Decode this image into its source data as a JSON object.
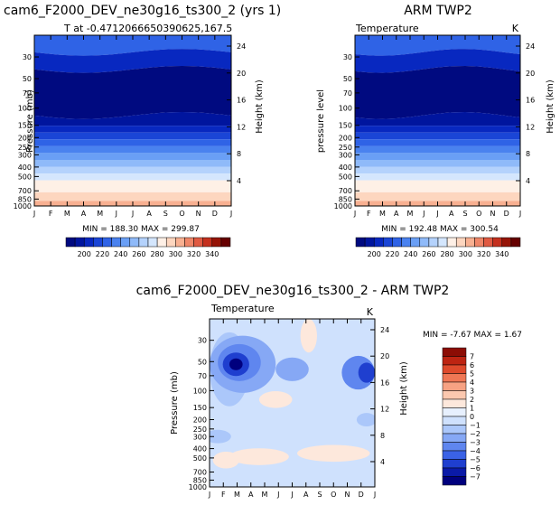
{
  "colors": {
    "temp_palette": [
      "#000a80",
      "#00159e",
      "#0828c0",
      "#1a45d6",
      "#2f63e6",
      "#4a82ef",
      "#6a9ff5",
      "#8fbaf9",
      "#b4d2fc",
      "#d4e6fd",
      "#fef0e6",
      "#fdd6bf",
      "#f8b091",
      "#ef8668",
      "#e05a42",
      "#c4301e",
      "#961407",
      "#660000"
    ],
    "diff_palette": [
      "#00007e",
      "#0a1aa8",
      "#1f3fcf",
      "#3a62e6",
      "#5f86ef",
      "#86a8f5",
      "#abc7fa",
      "#cfe1fd",
      "#e7f0fe",
      "#fde8dc",
      "#fbc8af",
      "#f7a283",
      "#ef7755",
      "#de4a2c",
      "#bd2412",
      "#8c0d05"
    ]
  },
  "chart_data": [
    {
      "type": "heatmap",
      "title": "cam6_F2000_DEV_ne30g16_ts300_2 (yrs 1)",
      "subtitle_left": "T at -0.4712066650390625,167.5",
      "subtitle_right": "",
      "ylabel": "Pressure (mb)",
      "ylabel_right": "Height (km)",
      "x_ticks": [
        "J",
        "F",
        "M",
        "A",
        "M",
        "J",
        "J",
        "A",
        "S",
        "O",
        "N",
        "D",
        "J"
      ],
      "y_ticks": [
        30,
        50,
        70,
        100,
        150,
        200,
        250,
        300,
        400,
        500,
        700,
        850,
        1000
      ],
      "y_right_ticks": [
        24,
        20,
        16,
        12,
        8,
        4
      ],
      "stats": "MIN = 188.30  MAX = 299.87",
      "min": 188.3,
      "max": 299.87,
      "levels": [
        200,
        220,
        240,
        260,
        280,
        300,
        320,
        340
      ],
      "colorbar_labels": [
        "200",
        "220",
        "240",
        "260",
        "280",
        "300",
        "320",
        "340"
      ]
    },
    {
      "type": "heatmap",
      "title": "ARM TWP2",
      "subtitle_left": "Temperature",
      "subtitle_right": "K",
      "ylabel": "pressure level",
      "ylabel_right": "Height (km)",
      "x_ticks": [
        "J",
        "F",
        "M",
        "A",
        "M",
        "J",
        "J",
        "A",
        "S",
        "O",
        "N",
        "D",
        "J"
      ],
      "y_ticks": [
        30,
        50,
        70,
        100,
        150,
        200,
        250,
        300,
        400,
        500,
        700,
        850,
        1000
      ],
      "y_right_ticks": [
        24,
        20,
        16,
        12,
        8,
        4
      ],
      "stats": "MIN = 192.48  MAX = 300.54",
      "min": 192.48,
      "max": 300.54,
      "levels": [
        200,
        220,
        240,
        260,
        280,
        300,
        320,
        340
      ],
      "colorbar_labels": [
        "200",
        "220",
        "240",
        "260",
        "280",
        "300",
        "320",
        "340"
      ]
    },
    {
      "type": "heatmap",
      "title": "cam6_F2000_DEV_ne30g16_ts300_2 - ARM TWP2",
      "subtitle_left": "Temperature",
      "subtitle_right": "K",
      "ylabel": "Pressure (mb)",
      "ylabel_right": "Height (km)",
      "x_ticks": [
        "J",
        "F",
        "M",
        "A",
        "M",
        "J",
        "J",
        "A",
        "S",
        "O",
        "N",
        "D",
        "J"
      ],
      "y_ticks": [
        30,
        50,
        70,
        100,
        150,
        200,
        250,
        300,
        400,
        500,
        700,
        850,
        1000
      ],
      "y_right_ticks": [
        24,
        20,
        16,
        12,
        8,
        4
      ],
      "stats": "MIN =   -7.67  MAX =    1.67",
      "min": -7.67,
      "max": 1.67,
      "levels": [
        -7,
        -6,
        -5,
        -4,
        -3,
        -2,
        -1,
        0,
        1,
        2,
        3,
        4,
        5,
        6,
        7
      ],
      "colorbar_labels": [
        "7",
        "6",
        "5",
        "4",
        "3",
        "2",
        "1",
        "0",
        "−1",
        "−2",
        "−3",
        "−4",
        "−5",
        "−6",
        "−7"
      ]
    }
  ]
}
